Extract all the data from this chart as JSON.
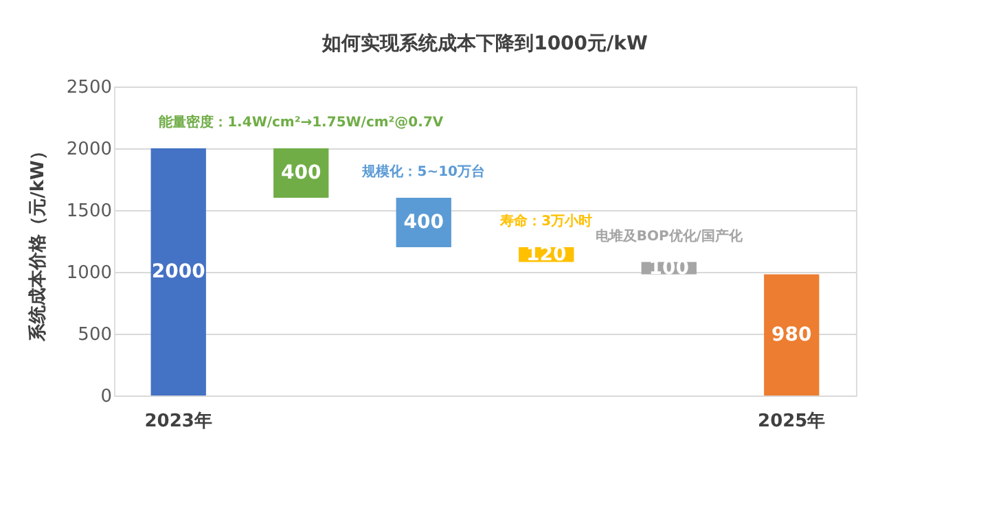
{
  "chart_data": {
    "type": "bar",
    "title": "如何实现系统成本下降到1000元/kW",
    "ylabel": "系统成本价格（元/kW）",
    "categories": [
      "2023年",
      null,
      null,
      null,
      null,
      "2025年"
    ],
    "values": [
      2000,
      400,
      400,
      120,
      100,
      980
    ],
    "base": [
      0,
      1600,
      1200,
      1080,
      980,
      0
    ],
    "colors": [
      "#4472c4",
      "#70ad47",
      "#5b9bd5",
      "#ffc000",
      "#a5a5a5",
      "#ed7d31"
    ],
    "annotations": [
      "能量密度：1.4W/cm²→1.75W/cm²@0.7V",
      "规模化：5~10万台",
      "寿命：3万小时",
      "电堆及BOP优化/国产化"
    ],
    "data_labels": true,
    "ylim": [
      0,
      2500
    ],
    "yticks": [
      0,
      500,
      1000,
      1500,
      2000,
      2500
    ],
    "grid": "y"
  }
}
